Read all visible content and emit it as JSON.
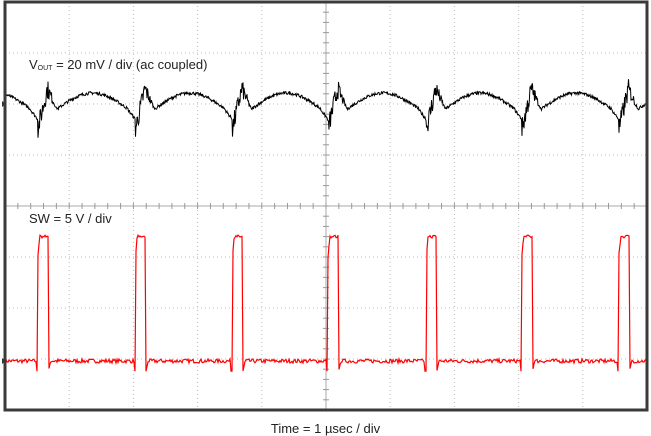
{
  "chart_data": {
    "type": "line",
    "xlabel": "Time = 1 µsec / div",
    "x_unit": "µs",
    "xlim": [
      0,
      10
    ],
    "divisions": {
      "x": 10,
      "y": 8
    },
    "grid": true,
    "series": [
      {
        "name": "VOUT",
        "label_main": "V",
        "label_sub": "OUT",
        "label_rest": " = 20 mV / div (ac coupled)",
        "unit": "mV",
        "scale_per_div": 20,
        "color": "#000000",
        "switch_rise_times_us": [
          0.51,
          2.03,
          3.54,
          5.03,
          6.56,
          8.05,
          9.56
        ],
        "dip_at_switch_mV": -10,
        "spike_after_switch_mV": 6,
        "arc_peak_mV": 4.3,
        "level_before_switch_mV": -6
      },
      {
        "name": "SW",
        "label": "SW = 5 V / div",
        "unit": "V",
        "scale_per_div": 5,
        "color": "#ff0000",
        "pulse_rise_times_us": [
          0.51,
          2.03,
          3.54,
          5.03,
          6.56,
          8.05,
          9.56
        ],
        "pulse_width_us": 0.16,
        "high_V": 12.2,
        "low_V": 0,
        "undershoot_V": -1
      }
    ]
  }
}
